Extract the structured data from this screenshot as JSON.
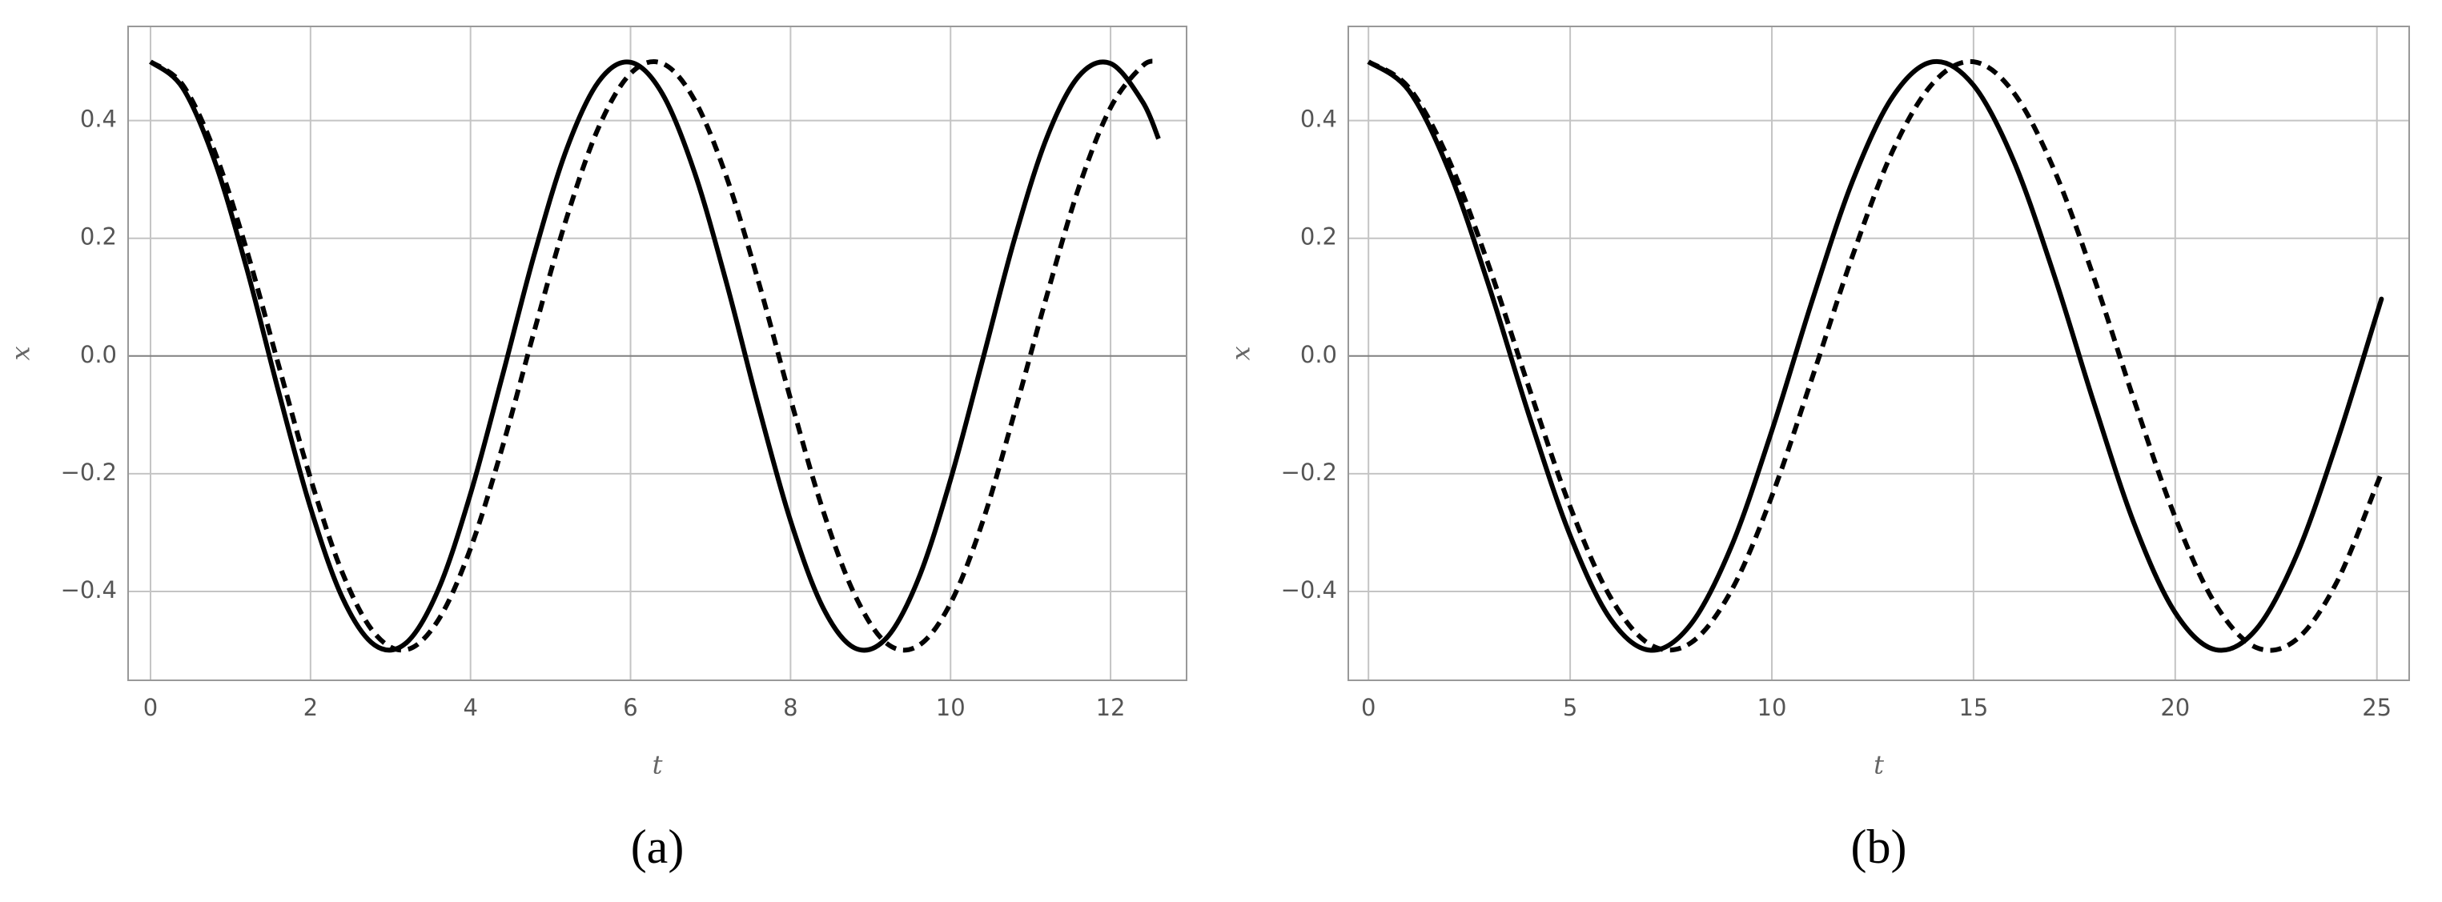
{
  "chart_data": [
    {
      "type": "line",
      "title": "(a)",
      "xlabel": "t",
      "ylabel": "x",
      "x": [
        0,
        0.4,
        0.8,
        1.2,
        1.6,
        2.0,
        2.4,
        2.8,
        3.2,
        3.6,
        4.0,
        4.4,
        4.8,
        5.2,
        5.6,
        6.0,
        6.4,
        6.8,
        7.2,
        7.6,
        8.0,
        8.4,
        8.8,
        9.2,
        9.6,
        10.0,
        10.4,
        10.8,
        11.2,
        11.6,
        12.0,
        12.4,
        12.6
      ],
      "series": [
        {
          "color": "#000000",
          "linestyle": "solid",
          "values": [
            0.5,
            0.456,
            0.332,
            0.15,
            -0.06,
            -0.258,
            -0.411,
            -0.491,
            -0.487,
            -0.396,
            -0.234,
            -0.033,
            0.174,
            0.351,
            0.466,
            0.499,
            0.445,
            0.312,
            0.124,
            -0.086,
            -0.28,
            -0.426,
            -0.496,
            -0.479,
            -0.378,
            -0.21,
            -0.007,
            0.199,
            0.37,
            0.475,
            0.497,
            0.432,
            0.369
          ]
        },
        {
          "color": "#000000",
          "linestyle": "dashed",
          "values": [
            0.5,
            0.461,
            0.348,
            0.181,
            -0.015,
            -0.208,
            -0.369,
            -0.471,
            -0.499,
            -0.448,
            -0.327,
            -0.154,
            0.044,
            0.234,
            0.388,
            0.48,
            0.497,
            0.435,
            0.304,
            0.126,
            -0.073,
            -0.26,
            -0.405,
            -0.488,
            -0.492,
            -0.42,
            -0.282,
            -0.096,
            0.101,
            0.285,
            0.422,
            0.493,
            0.5
          ]
        }
      ],
      "xlim": [
        -0.28,
        12.95
      ],
      "xticks": [
        0,
        2,
        4,
        6,
        8,
        10,
        12
      ],
      "ylim": [
        -0.551,
        0.56
      ],
      "yticks": [
        {
          "value": -0.4,
          "label": "−0.4"
        },
        {
          "value": -0.2,
          "label": "−0.2"
        },
        {
          "value": 0,
          "label": "0.0"
        },
        0.2,
        0.4
      ],
      "grid": true
    },
    {
      "type": "line",
      "title": "(b)",
      "xlabel": "t",
      "ylabel": "x",
      "x": [
        0,
        1,
        2,
        3,
        4,
        5,
        6,
        7,
        8,
        9,
        10,
        11,
        12,
        13,
        14,
        15,
        16,
        17,
        18,
        19,
        20,
        21,
        22,
        23,
        24,
        25,
        25.1
      ],
      "series": [
        {
          "color": "#000000",
          "linestyle": "solid",
          "values": [
            0.5,
            0.451,
            0.314,
            0.116,
            -0.105,
            -0.305,
            -0.447,
            -0.5,
            -0.455,
            -0.323,
            -0.127,
            0.094,
            0.297,
            0.441,
            0.5,
            0.46,
            0.331,
            0.137,
            -0.083,
            -0.288,
            -0.436,
            -0.499,
            -0.465,
            -0.34,
            -0.148,
            0.072,
            0.094
          ]
        },
        {
          "color": "#000000",
          "linestyle": "dashed",
          "values": [
            0.5,
            0.456,
            0.332,
            0.15,
            -0.058,
            -0.256,
            -0.41,
            -0.491,
            -0.487,
            -0.398,
            -0.238,
            -0.037,
            0.17,
            0.349,
            0.464,
            0.5,
            0.447,
            0.316,
            0.13,
            -0.079,
            -0.274,
            -0.422,
            -0.495,
            -0.482,
            -0.385,
            -0.218,
            -0.2
          ]
        }
      ],
      "xlim": [
        -0.5,
        25.8
      ],
      "xticks": [
        0,
        5,
        10,
        15,
        20,
        25
      ],
      "ylim": [
        -0.551,
        0.56
      ],
      "yticks": [
        {
          "value": -0.4,
          "label": "−0.4"
        },
        {
          "value": -0.2,
          "label": "−0.2"
        },
        {
          "value": 0,
          "label": "0.0"
        },
        0.2,
        0.4
      ],
      "grid": true
    }
  ]
}
